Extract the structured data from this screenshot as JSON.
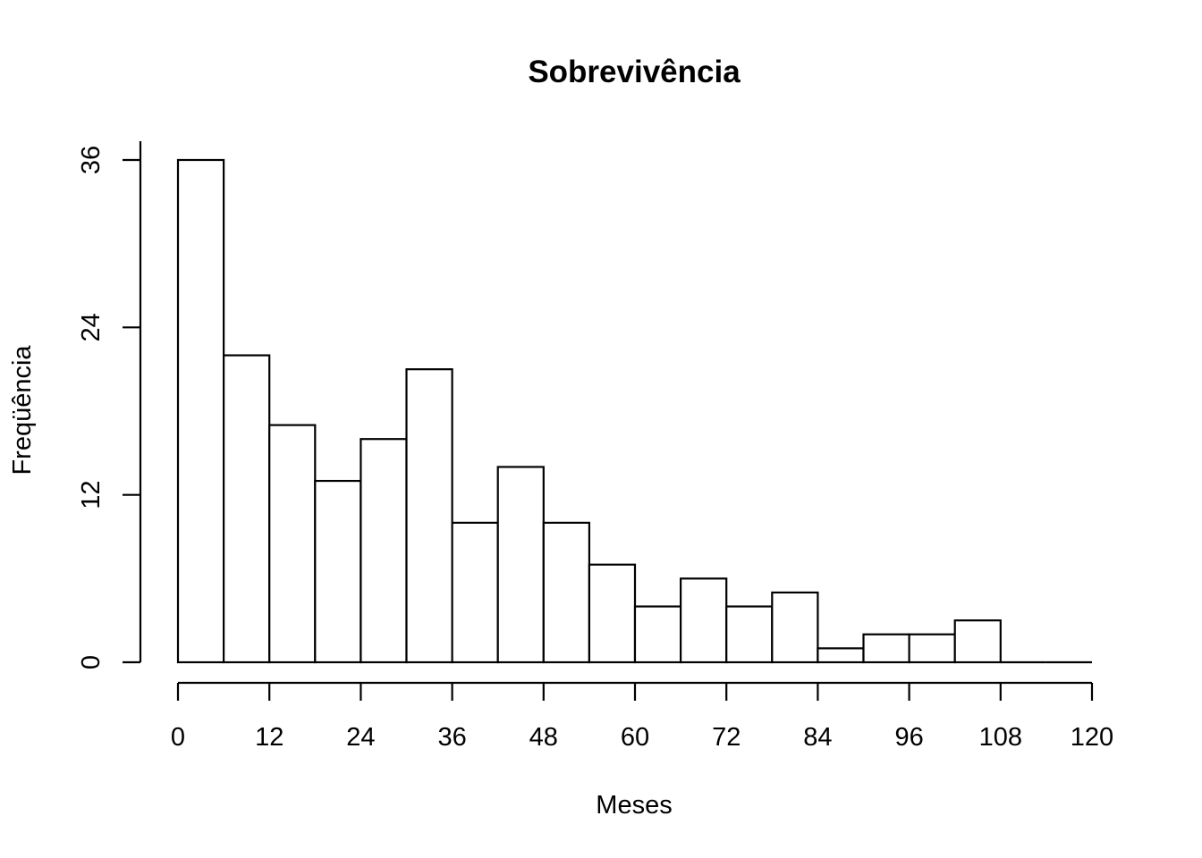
{
  "chart_data": {
    "type": "bar",
    "title": "Sobrevivência",
    "xlabel": "Meses",
    "ylabel": "Freqüência",
    "bin_width": 6,
    "bins": [
      {
        "start": 0,
        "end": 6,
        "count": 36
      },
      {
        "start": 6,
        "end": 12,
        "count": 22
      },
      {
        "start": 12,
        "end": 18,
        "count": 17
      },
      {
        "start": 18,
        "end": 24,
        "count": 13
      },
      {
        "start": 24,
        "end": 30,
        "count": 16
      },
      {
        "start": 30,
        "end": 36,
        "count": 21
      },
      {
        "start": 36,
        "end": 42,
        "count": 10
      },
      {
        "start": 42,
        "end": 48,
        "count": 14
      },
      {
        "start": 48,
        "end": 54,
        "count": 10
      },
      {
        "start": 54,
        "end": 60,
        "count": 7
      },
      {
        "start": 60,
        "end": 66,
        "count": 4
      },
      {
        "start": 66,
        "end": 72,
        "count": 6
      },
      {
        "start": 72,
        "end": 78,
        "count": 4
      },
      {
        "start": 78,
        "end": 84,
        "count": 5
      },
      {
        "start": 84,
        "end": 90,
        "count": 1
      },
      {
        "start": 90,
        "end": 96,
        "count": 2
      },
      {
        "start": 96,
        "end": 102,
        "count": 2
      },
      {
        "start": 102,
        "end": 108,
        "count": 3
      },
      {
        "start": 108,
        "end": 114,
        "count": 0
      },
      {
        "start": 114,
        "end": 120,
        "count": 0
      }
    ],
    "xlim": [
      0,
      120
    ],
    "ylim": [
      0,
      36
    ],
    "x_ticks": [
      0,
      12,
      24,
      36,
      48,
      60,
      72,
      84,
      96,
      108,
      120
    ],
    "y_ticks": [
      0,
      12,
      24,
      36
    ],
    "grid": false,
    "legend": "none",
    "colors": {
      "bar_fill": "#ffffff",
      "bar_stroke": "#000000",
      "axis": "#000000",
      "text": "#000000"
    }
  }
}
